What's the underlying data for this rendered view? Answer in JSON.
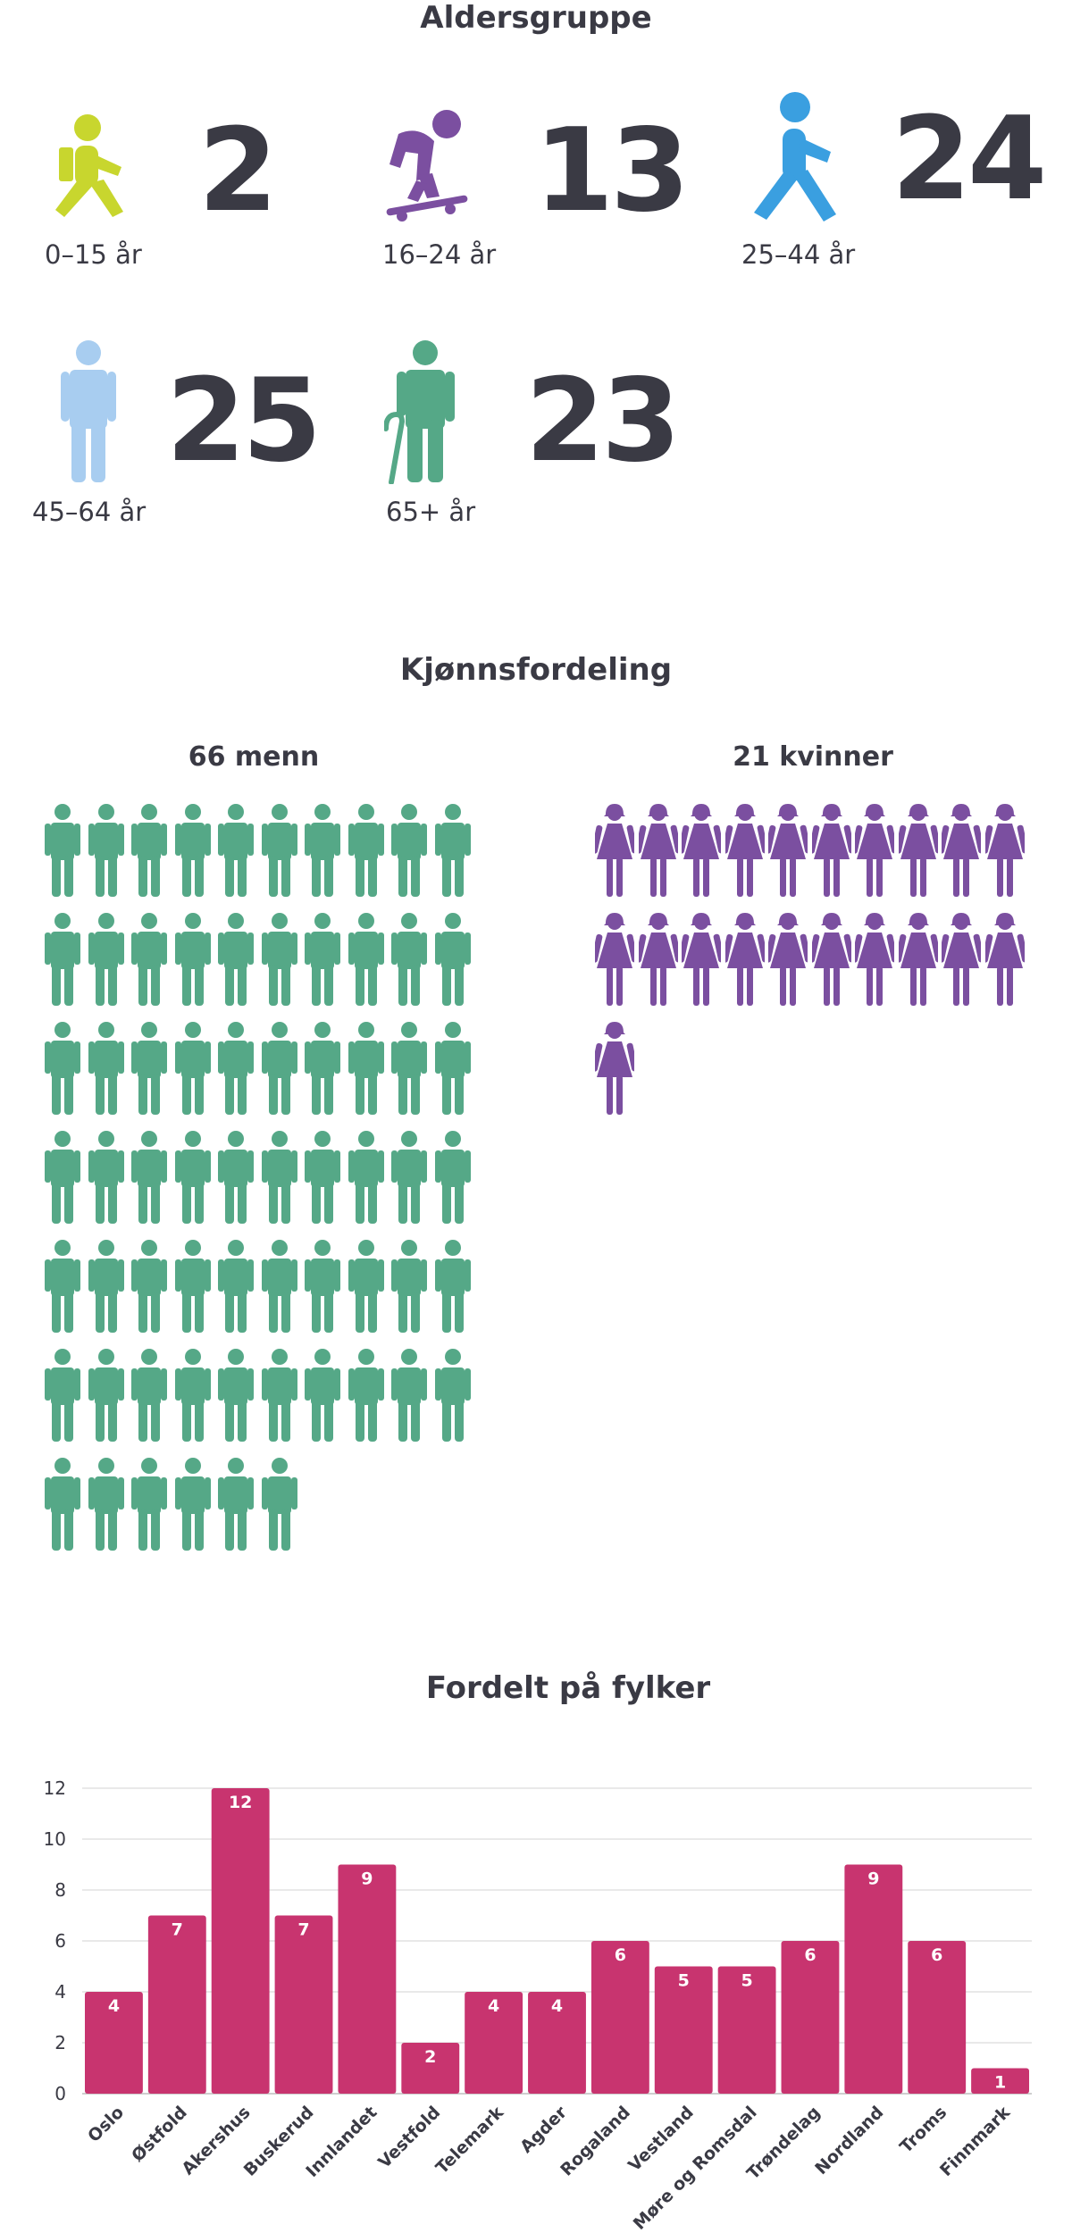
{
  "age_section": {
    "title": "Aldersgruppe",
    "groups": [
      {
        "label": "0–15 år",
        "count": "2",
        "icon": "child-icon",
        "color": "#c8d62e"
      },
      {
        "label": "16–24 år",
        "count": "13",
        "icon": "skateboarder-icon",
        "color": "#7b4fa0"
      },
      {
        "label": "25–44 år",
        "count": "24",
        "icon": "walking-person-icon",
        "color": "#3a9fe0"
      },
      {
        "label": "45–64 år",
        "count": "25",
        "icon": "standing-person-icon",
        "color": "#a8cdf0"
      },
      {
        "label": "65+ år",
        "count": "23",
        "icon": "elderly-person-cane-icon",
        "color": "#55a887"
      }
    ]
  },
  "gender_section": {
    "title": "Kjønnsfordeling",
    "men": {
      "label": "66 menn",
      "count": 66,
      "color": "#55a887",
      "icon": "man-icon"
    },
    "women": {
      "label": "21 kvinner",
      "count": 21,
      "color": "#7b4fa0",
      "icon": "woman-icon"
    }
  },
  "county_section": {
    "title": "Fordelt på fylker"
  },
  "chart_data": {
    "type": "bar",
    "title": "Fordelt på fylker",
    "categories": [
      "Oslo",
      "Østfold",
      "Akershus",
      "Buskerud",
      "Innlandet",
      "Vestfold",
      "Telemark",
      "Agder",
      "Rogaland",
      "Vestland",
      "Møre og Romsdal",
      "Trøndelag",
      "Nordland",
      "Troms",
      "Finnmark"
    ],
    "values": [
      4,
      7,
      12,
      7,
      9,
      2,
      4,
      4,
      6,
      5,
      5,
      6,
      9,
      6,
      1
    ],
    "ylim": [
      0,
      12
    ],
    "yticks": [
      0,
      2,
      4,
      6,
      8,
      10,
      12
    ],
    "grid": true,
    "data_labels": true,
    "color": "#c8346f"
  }
}
